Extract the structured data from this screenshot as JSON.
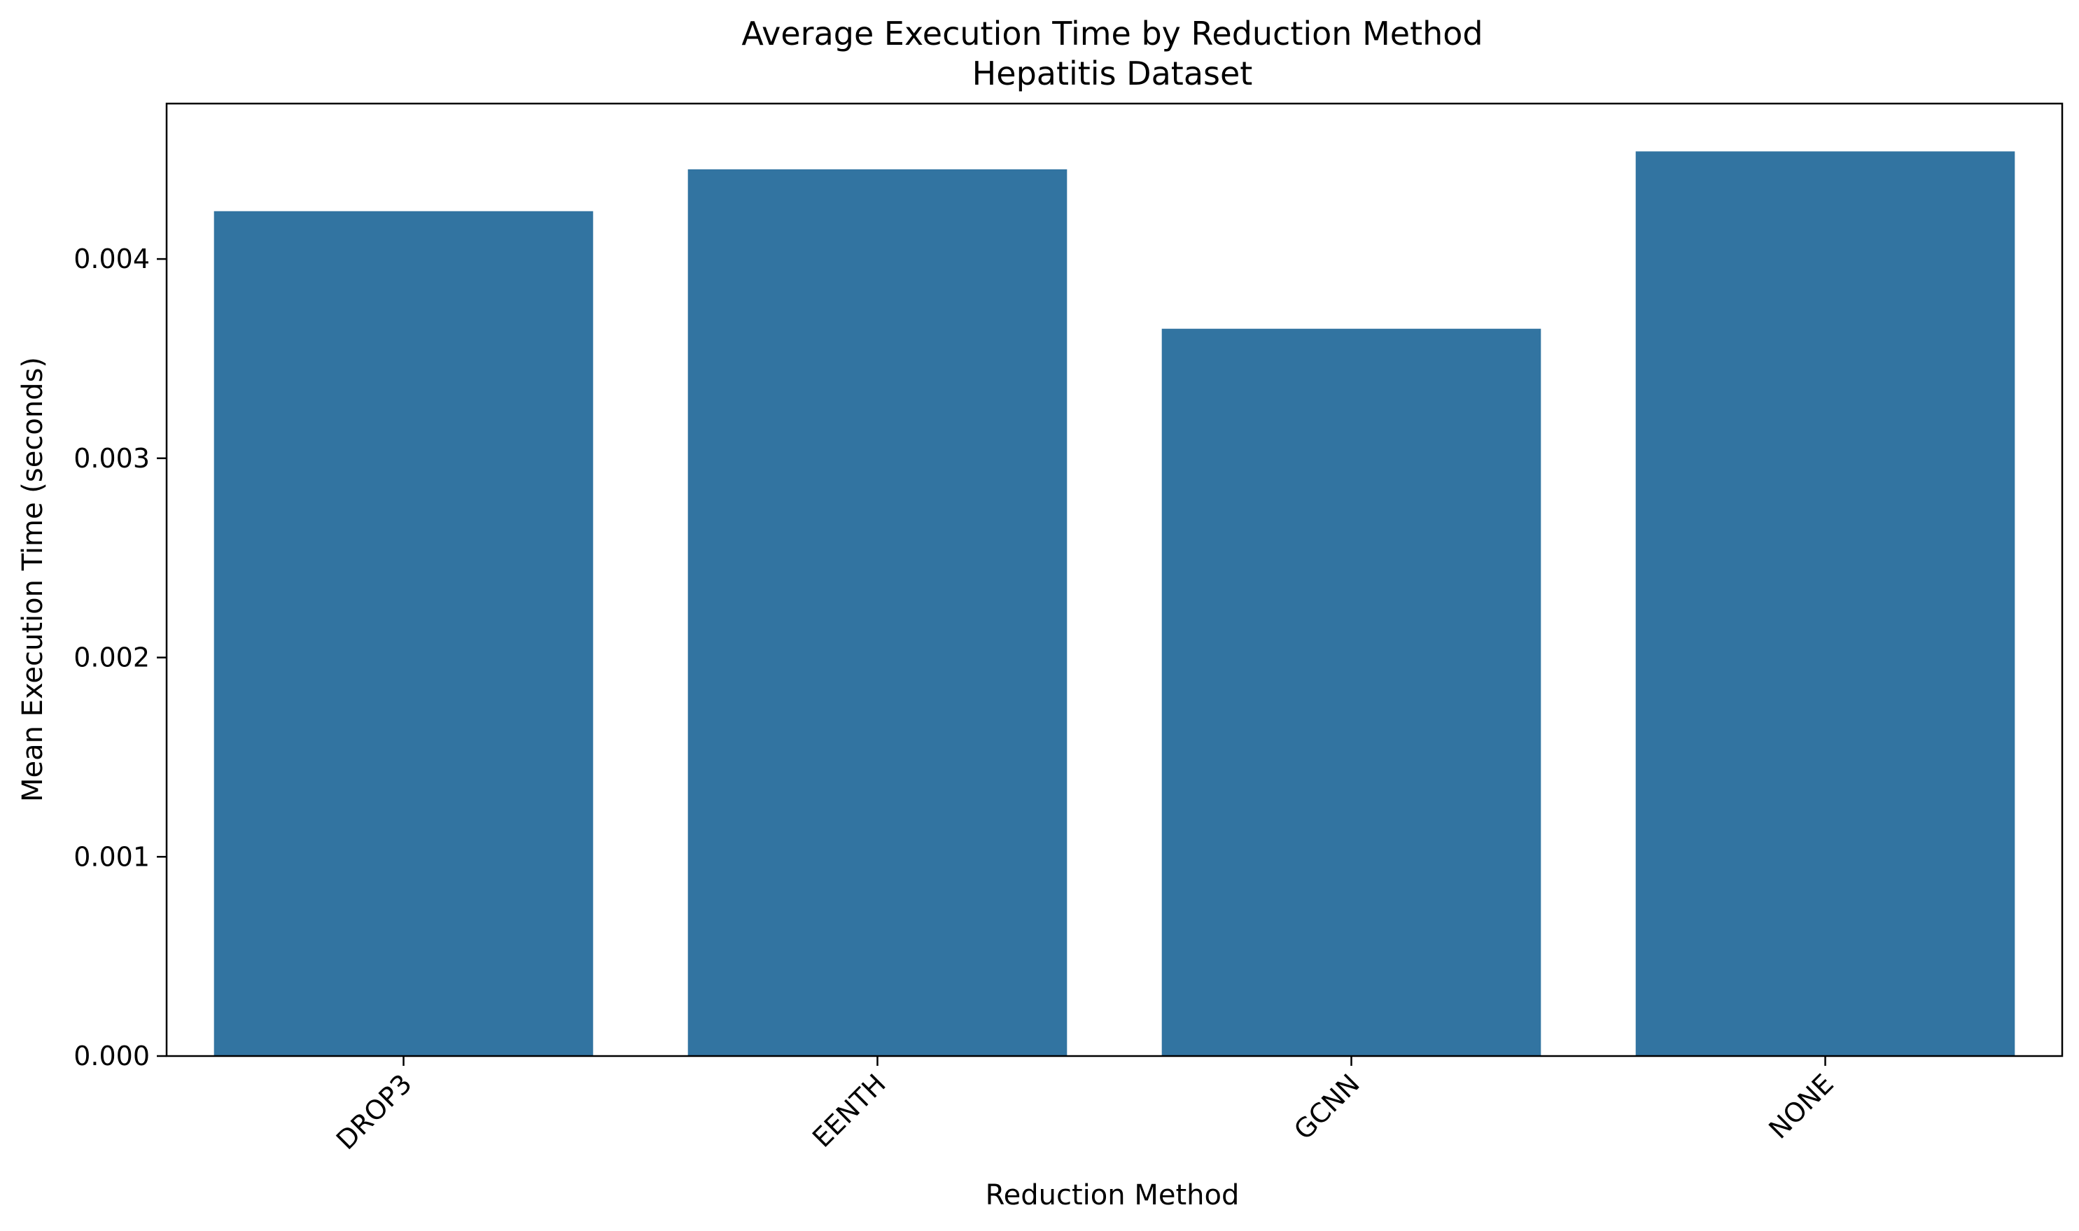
{
  "chart_data": {
    "type": "bar",
    "title": "Average Execution Time by Reduction Method",
    "subtitle": "Hepatitis Dataset",
    "xlabel": "Reduction Method",
    "ylabel": "Mean Execution Time (seconds)",
    "categories": [
      "DROP3",
      "EENTH",
      "GCNN",
      "NONE"
    ],
    "values": [
      0.00424,
      0.00445,
      0.00365,
      0.00454
    ],
    "ylim": [
      0,
      0.00478
    ],
    "yticks": [
      0.0,
      0.001,
      0.002,
      0.003,
      0.004
    ],
    "ytick_labels": [
      "0.000",
      "0.001",
      "0.002",
      "0.003",
      "0.004"
    ],
    "bar_color": "#3274a1",
    "grid": false,
    "legend": "none"
  }
}
